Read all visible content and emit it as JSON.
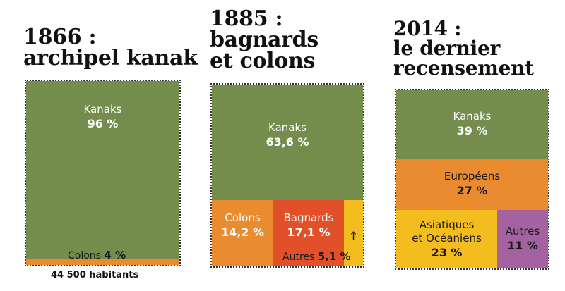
{
  "colors": {
    "kanaks": "#748d4c",
    "colons": "#e98b2e",
    "bagnards": "#e2502a",
    "autres": "#f4bd1f",
    "europeens": "#e98b2e",
    "asiatiques": "#f4bd1f",
    "autres2014": "#a463a0"
  },
  "panels": [
    {
      "title": "1866 :\narchipel kanak",
      "note": "44 500 habitants",
      "segments": [
        {
          "label": "Kanaks",
          "value": "96 %"
        },
        {
          "label": "Colons",
          "value": "4 %"
        }
      ]
    },
    {
      "title": "1885 :\nbagnards\net colons",
      "segments": [
        {
          "label": "Kanaks",
          "value": "63,6 %"
        },
        {
          "label": "Colons",
          "value": "14,2 %"
        },
        {
          "label": "Bagnards",
          "value": "17,1 %"
        },
        {
          "label": "Autres",
          "value": "5,1 %",
          "arrow": "↑"
        }
      ]
    },
    {
      "title": "2014 :\nle dernier\nrecensement",
      "segments": [
        {
          "label": "Kanaks",
          "value": "39 %"
        },
        {
          "label": "Européens",
          "value": "27 %"
        },
        {
          "label": "Asiatiques\net Océaniens",
          "value": "23 %"
        },
        {
          "label": "Autres",
          "value": "11 %"
        }
      ]
    }
  ],
  "chart_data": [
    {
      "type": "treemap",
      "title": "1866 : archipel kanak",
      "note": "44 500 habitants",
      "categories": [
        "Kanaks",
        "Colons"
      ],
      "values": [
        96,
        4
      ]
    },
    {
      "type": "treemap",
      "title": "1885 : bagnards et colons",
      "categories": [
        "Kanaks",
        "Colons",
        "Bagnards",
        "Autres"
      ],
      "values": [
        63.6,
        14.2,
        17.1,
        5.1
      ]
    },
    {
      "type": "treemap",
      "title": "2014 : le dernier recensement",
      "categories": [
        "Kanaks",
        "Européens",
        "Asiatiques et Océaniens",
        "Autres"
      ],
      "values": [
        39,
        27,
        23,
        11
      ]
    }
  ]
}
